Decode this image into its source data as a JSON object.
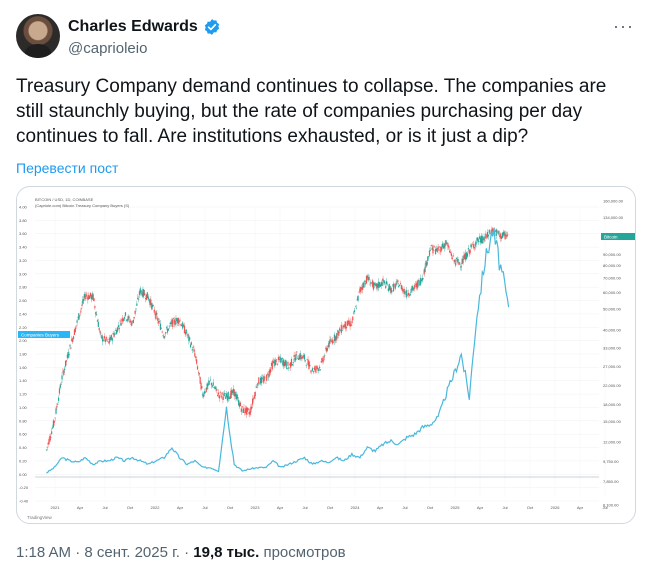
{
  "author": {
    "name": "Charles Edwards",
    "handle": "@caprioleio",
    "avatar_icon": "person-avatar"
  },
  "tweet": {
    "text": "Treasury Company demand continues to collapse. The companies are still staunchly buying, but the rate of companies purchasing per day continues to fall. Are institutions exhausted, or is it just a dip?",
    "translate_label": "Перевести пост"
  },
  "meta": {
    "time": "1:18 AM",
    "date": "8 сент. 2025 г.",
    "views_count": "19,8 тыс.",
    "views_label": "просмотров"
  },
  "colors": {
    "accent": "#1d9bf0",
    "line_series": "#49b8dd",
    "candle_up": "#26a69a",
    "candle_down": "#ef5350"
  },
  "chart_data": {
    "type": "line",
    "header_line1": "BITCOIN / USD, 1D, COINBASE",
    "header_line2": "(Capriole.com) Bitcoin Treasury Company Buyers (S)",
    "badge_left": "Companies Buyers",
    "badge_right": "Bitcoin",
    "x_ticks": [
      "2021",
      "Apr",
      "Jul",
      "Oct",
      "2022",
      "Apr",
      "Jul",
      "Oct",
      "2023",
      "Apr",
      "Jul",
      "Oct",
      "2024",
      "Apr",
      "Jul",
      "Oct",
      "2025",
      "Apr",
      "Jul",
      "Oct",
      "2026",
      "Apr",
      "Jul"
    ],
    "left_axis_ticks": [
      "4.00",
      "3.80",
      "3.60",
      "3.40",
      "3.20",
      "3.00",
      "2.80",
      "2.60",
      "2.40",
      "2.20",
      "2.00",
      "1.80",
      "1.60",
      "1.40",
      "1.20",
      "1.00",
      "0.80",
      "0.60",
      "0.40",
      "0.20",
      "0.00",
      "-0.20",
      "-0.40"
    ],
    "right_axis_ticks": [
      "160,000.00",
      "134,000.00",
      "112,000.00",
      "90,000.00",
      "80,000.00",
      "70,000.00",
      "60,000.00",
      "50,000.00",
      "40,000.00",
      "33,000.00",
      "27,000.00",
      "22,000.00",
      "18,000.00",
      "15,000.00",
      "12,000.00",
      "9,750.00",
      "7,850.00",
      "6,100.00"
    ],
    "series": [
      {
        "name": "Bitcoin Treasury Company Buyers",
        "x": [
          "2020-10",
          "2020-11",
          "2020-12",
          "2021-01",
          "2021-02",
          "2021-03",
          "2021-04",
          "2021-05",
          "2021-06",
          "2021-07",
          "2021-08",
          "2021-09",
          "2021-10",
          "2021-11",
          "2021-12",
          "2022-01",
          "2022-02",
          "2022-03",
          "2022-04",
          "2022-05",
          "2022-06",
          "2022-07",
          "2022-08",
          "2022-09",
          "2022-10",
          "2022-11",
          "2022-12",
          "2023-01",
          "2023-02",
          "2023-03",
          "2023-04",
          "2023-05",
          "2023-06",
          "2023-07",
          "2023-08",
          "2023-09",
          "2023-10",
          "2023-11",
          "2023-12",
          "2024-01",
          "2024-02",
          "2024-03",
          "2024-04",
          "2024-05",
          "2024-06",
          "2024-07",
          "2024-08",
          "2024-09",
          "2024-10",
          "2024-11",
          "2024-12",
          "2025-01",
          "2025-02",
          "2025-03",
          "2025-04",
          "2025-05",
          "2025-06",
          "2025-07",
          "2025-08",
          "2025-09"
        ],
        "values": [
          0.02,
          0.1,
          0.25,
          0.2,
          0.18,
          0.25,
          0.15,
          0.2,
          0.2,
          0.25,
          0.2,
          0.25,
          0.2,
          0.15,
          0.2,
          0.25,
          0.4,
          0.25,
          0.15,
          0.2,
          0.1,
          0.1,
          0.05,
          1.0,
          0.15,
          0.05,
          0.08,
          0.1,
          0.1,
          0.2,
          0.1,
          0.15,
          0.2,
          0.25,
          0.15,
          0.2,
          0.18,
          0.25,
          0.2,
          0.3,
          0.25,
          0.4,
          0.35,
          0.45,
          0.5,
          0.45,
          0.55,
          0.6,
          0.7,
          0.75,
          0.85,
          1.2,
          1.5,
          1.8,
          1.15,
          2.4,
          3.2,
          3.65,
          3.1,
          2.5
        ]
      },
      {
        "name": "Bitcoin / USD",
        "x": [
          "2020-10",
          "2020-11",
          "2020-12",
          "2021-01",
          "2021-02",
          "2021-03",
          "2021-04",
          "2021-05",
          "2021-06",
          "2021-07",
          "2021-08",
          "2021-09",
          "2021-10",
          "2021-11",
          "2021-12",
          "2022-01",
          "2022-02",
          "2022-03",
          "2022-04",
          "2022-05",
          "2022-06",
          "2022-07",
          "2022-08",
          "2022-09",
          "2022-10",
          "2022-11",
          "2022-12",
          "2023-01",
          "2023-02",
          "2023-03",
          "2023-04",
          "2023-05",
          "2023-06",
          "2023-07",
          "2023-08",
          "2023-09",
          "2023-10",
          "2023-11",
          "2023-12",
          "2024-01",
          "2024-02",
          "2024-03",
          "2024-04",
          "2024-05",
          "2024-06",
          "2024-07",
          "2024-08",
          "2024-09",
          "2024-10",
          "2024-11",
          "2024-12",
          "2025-01",
          "2025-02",
          "2025-03",
          "2025-04",
          "2025-05",
          "2025-06",
          "2025-07",
          "2025-08",
          "2025-09"
        ],
        "values": [
          11000,
          15000,
          24000,
          33000,
          45000,
          58000,
          57000,
          37000,
          35000,
          40000,
          47000,
          43000,
          61000,
          57000,
          47000,
          38000,
          43000,
          45000,
          38000,
          31000,
          20000,
          23000,
          20000,
          19500,
          20500,
          17000,
          16500,
          23000,
          23500,
          28000,
          29000,
          27000,
          30500,
          29500,
          26000,
          27000,
          34000,
          37500,
          42000,
          43000,
          61000,
          70000,
          63000,
          67000,
          62000,
          66000,
          59000,
          63000,
          70000,
          96000,
          94000,
          102000,
          84000,
          82000,
          94000,
          104000,
          107000,
          117000,
          110000,
          111000
        ]
      }
    ],
    "left_axis": {
      "min": -0.4,
      "max": 4.0
    },
    "right_axis": {
      "scale": "log",
      "min": 6100,
      "max": 160000
    },
    "grid": true,
    "legend": "top-left",
    "watermark": "TradingView"
  }
}
